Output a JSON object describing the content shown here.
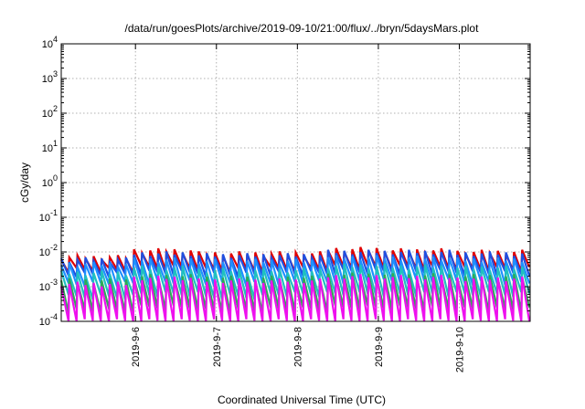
{
  "chart_data": {
    "type": "line",
    "title": "/data/run/goesPlots/archive/2019-09-10/21:00/flux/../bryn/5daysMars.plot",
    "xlabel": "Coordinated Universal Time (UTC)",
    "ylabel": "cGy/day",
    "y_scale": "log",
    "ylim": [
      0.0001,
      10000
    ],
    "xlim": [
      "2019-09-05 02:00",
      "2019-09-10 21:00"
    ],
    "grid": true,
    "legend": "none",
    "x_ticks": [
      "2019-9-6",
      "2019-9-7",
      "2019-9-8",
      "2019-9-9",
      "2019-9-10"
    ],
    "y_ticks": [
      {
        "value": 0.0001,
        "base": "10",
        "exp": "-4"
      },
      {
        "value": 0.001,
        "base": "10",
        "exp": "-3"
      },
      {
        "value": 0.01,
        "base": "10",
        "exp": "-2"
      },
      {
        "value": 0.1,
        "base": "10",
        "exp": "-1"
      },
      {
        "value": 1,
        "base": "10",
        "exp": "0"
      },
      {
        "value": 10,
        "base": "10",
        "exp": "1"
      },
      {
        "value": 100,
        "base": "10",
        "exp": "2"
      },
      {
        "value": 1000,
        "base": "10",
        "exp": "3"
      },
      {
        "value": 10000,
        "base": "10",
        "exp": "4"
      }
    ],
    "series": [
      {
        "color": "#e00000",
        "peak_values": [
          0.007,
          0.011,
          0.009,
          0.009,
          0.012,
          0.011,
          0.01
        ],
        "trough_values": [
          0.003,
          0.0035,
          0.003,
          0.0032,
          0.0036,
          0.0035,
          0.0032
        ]
      },
      {
        "color": "#1f4fe0",
        "peak_values": [
          0.006,
          0.009,
          0.008,
          0.008,
          0.01,
          0.01,
          0.009
        ],
        "trough_values": [
          0.0022,
          0.0025,
          0.0022,
          0.0024,
          0.0027,
          0.0026,
          0.0024
        ]
      },
      {
        "color": "#1e90ff",
        "peak_values": [
          0.0045,
          0.006,
          0.0055,
          0.0055,
          0.007,
          0.0068,
          0.006
        ],
        "trough_values": [
          0.0012,
          0.0013,
          0.0012,
          0.0013,
          0.0014,
          0.0014,
          0.0013
        ]
      },
      {
        "color": "#20c0c0",
        "peak_values": [
          0.0025,
          0.0035,
          0.003,
          0.003,
          0.004,
          0.0038,
          0.0035
        ],
        "trough_values": [
          0.0005,
          0.0006,
          0.0005,
          0.0006,
          0.0006,
          0.0006,
          0.0006
        ]
      },
      {
        "color": "#2eaa55",
        "peak_values": [
          0.0015,
          0.002,
          0.0018,
          0.0018,
          0.0022,
          0.0021,
          0.002
        ],
        "trough_values": [
          0.0002,
          0.00025,
          0.0002,
          0.00022,
          0.00025,
          0.00024,
          0.00022
        ]
      },
      {
        "color": "#ee10ee",
        "peak_values": [
          0.0012,
          0.0018,
          0.0015,
          0.0015,
          0.002,
          0.0019,
          0.0017
        ],
        "trough_values": [
          0.0001,
          0.0001,
          0.0001,
          0.0001,
          0.0001,
          0.0001,
          0.0001
        ]
      }
    ]
  }
}
